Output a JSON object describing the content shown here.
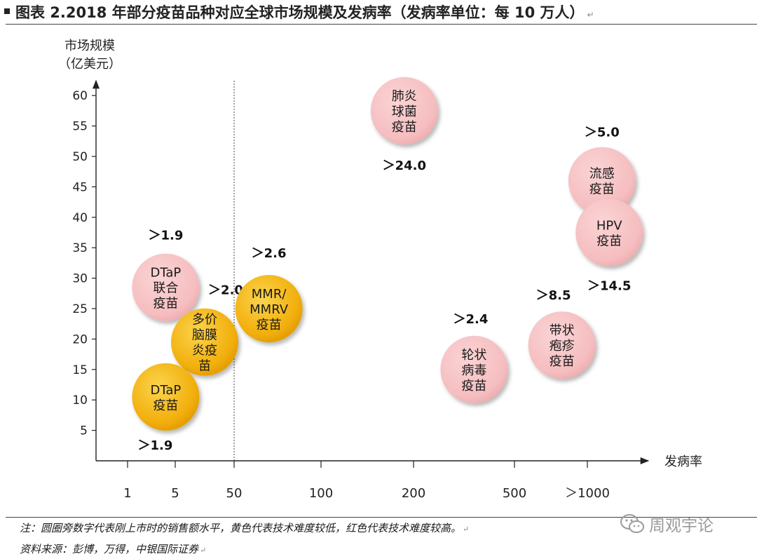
{
  "header": {
    "title": "图表 2.2018 年部分疫苗品种对应全球市场规模及发病率（发病率单位：每 10 万人）",
    "return_mark": "↵"
  },
  "chart_data": {
    "type": "bubble",
    "ylabel_line1": "市场规模",
    "ylabel_line2": "（亿美元）",
    "xlabel": "发病率",
    "yticks": [
      5,
      10,
      15,
      20,
      25,
      30,
      35,
      40,
      45,
      50,
      55,
      60
    ],
    "ylim": [
      0,
      64
    ],
    "xcategories": [
      "1",
      "5",
      "50",
      "100",
      "200",
      "500",
      "＞1000"
    ],
    "divider_after_category": "50",
    "legend_colors": {
      "low_difficulty": "#f4b400",
      "high_difficulty": "#f6c1c3"
    },
    "bubbles": [
      {
        "name": "pneumococcal",
        "lines": [
          "肺炎",
          "球菌",
          "疫苗"
        ],
        "x": 3.9,
        "y": 57.5,
        "level": "high",
        "tag": "＞24.0",
        "tag_dx": 0,
        "tag_dy": 77
      },
      {
        "name": "flu",
        "lines": [
          "流感",
          "疫苗"
        ],
        "x": 6.2,
        "y": 46,
        "level": "high",
        "tag": "＞5.0",
        "tag_dx": 0,
        "tag_dy": -70
      },
      {
        "name": "hpv",
        "lines": [
          "HPV",
          "疫苗"
        ],
        "x": 6.3,
        "y": 37.5,
        "level": "high",
        "tag": "＞14.5",
        "tag_dx": 0,
        "tag_dy": 75
      },
      {
        "name": "dtap-combo",
        "lines": [
          "DTaP",
          "联合",
          "疫苗"
        ],
        "x": 0.8,
        "y": 28.5,
        "level": "high",
        "tag": "＞1.9",
        "tag_dx": 0,
        "tag_dy": -75
      },
      {
        "name": "meningo",
        "lines": [
          "多价",
          "脑膜",
          "炎疫",
          "苗"
        ],
        "x": 1.5,
        "y": 19.5,
        "level": "low",
        "tag": "＞2.0",
        "tag_dx": 30,
        "tag_dy": -75
      },
      {
        "name": "mmr",
        "lines": [
          "MMR/",
          "MMRV",
          "疫苗"
        ],
        "x": 2.4,
        "y": 25,
        "level": "low",
        "tag": "＞2.6",
        "tag_dx": 0,
        "tag_dy": -80
      },
      {
        "name": "rotavirus",
        "lines": [
          "轮状",
          "病毒",
          "疫苗"
        ],
        "x": 4.6,
        "y": 15,
        "level": "high",
        "tag": "＞2.4",
        "tag_dx": -5,
        "tag_dy": -73
      },
      {
        "name": "zoster",
        "lines": [
          "带状",
          "疱疹",
          "疫苗"
        ],
        "x": 5.65,
        "y": 19,
        "level": "high",
        "tag": "＞8.5",
        "tag_dx": -12,
        "tag_dy": -72
      },
      {
        "name": "dtap",
        "lines": [
          "DTaP",
          "疫苗"
        ],
        "x": 0.8,
        "y": 10.5,
        "level": "low",
        "tag": "＞1.9",
        "tag_dx": -15,
        "tag_dy": 68
      }
    ]
  },
  "footer": {
    "note": "注：圆圈旁数字代表刚上市时的销售额水平，黄色代表技术难度较低，红色代表技术难度较高。",
    "source": "资料来源：彭博，万得，中银国际证券",
    "return_mark": "↵",
    "watermark": "周观宇论",
    "watermark_icon": "wechat-icon"
  }
}
